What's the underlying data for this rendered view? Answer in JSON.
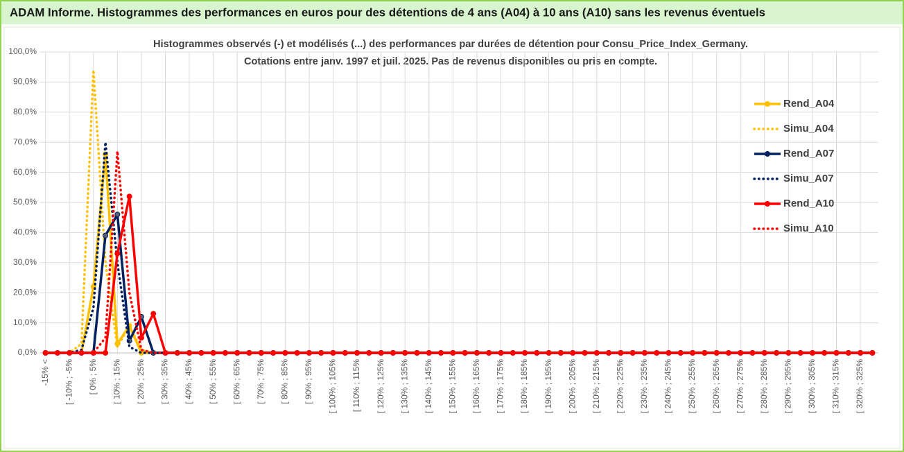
{
  "chart_data": {
    "type": "line",
    "header": "ADAM Informe. Histogrammes des performances en euros pour des détentions de 4 ans (A04) à 10 ans (A10) sans les revenus éventuels",
    "title": [
      "Histogrammes observés (-) et modélisés (...) des performances par durées de détention pour Consu_Price_Index_Germany.",
      "Cotations entre janv. 1997 et juil. 2025. Pas de revenus disponibles ou pris en compte."
    ],
    "categories": [
      "-15% <",
      null,
      "[ -10% ; -5%",
      null,
      "[ 0% ; 5%",
      null,
      "[ 10% ; 15%",
      null,
      "[ 20% ; 25%",
      null,
      "[ 30% ; 35%",
      null,
      "[ 40% ; 45%",
      null,
      "[ 50% ; 55%",
      null,
      "[ 60% ; 65%",
      null,
      "[ 70% ; 75%",
      null,
      "[ 80% ; 85%",
      null,
      "[ 90% ; 95%",
      null,
      "[ 100% ; 105%",
      null,
      "[ 110% ; 115%",
      null,
      "[ 120% ; 125%",
      null,
      "[ 130% ; 135%",
      null,
      "[ 140% ; 145%",
      null,
      "[ 150% ; 155%",
      null,
      "[ 160% ; 165%",
      null,
      "[ 170% ; 175%",
      null,
      "[ 180% ; 185%",
      null,
      "[ 190% ; 195%",
      null,
      "[ 200% ; 205%",
      null,
      "[ 210% ; 215%",
      null,
      "[ 220% ; 225%",
      null,
      "[ 230% ; 235%",
      null,
      "[ 240% ; 245%",
      null,
      "[ 250% ; 255%",
      null,
      "[ 260% ; 265%",
      null,
      "[ 270% ; 275%",
      null,
      "[ 280% ; 285%",
      null,
      "[ 290% ; 295%",
      null,
      "[ 300% ; 305%",
      null,
      "[ 310% ; 315%",
      null,
      "[ 320% ; 325%",
      null
    ],
    "series": [
      {
        "name": "Rend_A04",
        "color": "#ffc000",
        "dash": "solid",
        "markers": true,
        "values": [
          0,
          0,
          0,
          0,
          22,
          66,
          3,
          9,
          0,
          0,
          0,
          0,
          0,
          0,
          0,
          0,
          0,
          0,
          0,
          0,
          0,
          0,
          0,
          0,
          0,
          0,
          0,
          0,
          0,
          0,
          0,
          0,
          0,
          0,
          0,
          0,
          0,
          0,
          0,
          0,
          0,
          0,
          0,
          0,
          0,
          0,
          0,
          0,
          0,
          0,
          0,
          0,
          0,
          0,
          0,
          0,
          0,
          0,
          0,
          0,
          0,
          0,
          0,
          0,
          0,
          0,
          0,
          0,
          0,
          0
        ]
      },
      {
        "name": "Simu_A04",
        "color": "#ffc000",
        "dash": "dotted",
        "markers": false,
        "values": [
          0,
          0,
          0,
          3,
          94,
          30,
          2,
          9,
          1,
          0,
          0,
          0,
          0,
          0,
          0,
          0,
          0,
          0,
          0,
          0,
          0,
          0,
          0,
          0,
          0,
          0,
          0,
          0,
          0,
          0,
          0,
          0,
          0,
          0,
          0,
          0,
          0,
          0,
          0,
          0,
          0,
          0,
          0,
          0,
          0,
          0,
          0,
          0,
          0,
          0,
          0,
          0,
          0,
          0,
          0,
          0,
          0,
          0,
          0,
          0,
          0,
          0,
          0,
          0,
          0,
          0,
          0,
          0,
          0,
          0
        ]
      },
      {
        "name": "Rend_A07",
        "color": "#002060",
        "dash": "solid",
        "markers": true,
        "values": [
          0,
          0,
          0,
          0,
          0,
          39,
          46,
          4,
          12,
          0,
          0,
          0,
          0,
          0,
          0,
          0,
          0,
          0,
          0,
          0,
          0,
          0,
          0,
          0,
          0,
          0,
          0,
          0,
          0,
          0,
          0,
          0,
          0,
          0,
          0,
          0,
          0,
          0,
          0,
          0,
          0,
          0,
          0,
          0,
          0,
          0,
          0,
          0,
          0,
          0,
          0,
          0,
          0,
          0,
          0,
          0,
          0,
          0,
          0,
          0,
          0,
          0,
          0,
          0,
          0,
          0,
          0,
          0,
          0,
          0
        ]
      },
      {
        "name": "Simu_A07",
        "color": "#002060",
        "dash": "dotted",
        "markers": false,
        "values": [
          0,
          0,
          0,
          1,
          15,
          70,
          30,
          2,
          0,
          0,
          0,
          0,
          0,
          0,
          0,
          0,
          0,
          0,
          0,
          0,
          0,
          0,
          0,
          0,
          0,
          0,
          0,
          0,
          0,
          0,
          0,
          0,
          0,
          0,
          0,
          0,
          0,
          0,
          0,
          0,
          0,
          0,
          0,
          0,
          0,
          0,
          0,
          0,
          0,
          0,
          0,
          0,
          0,
          0,
          0,
          0,
          0,
          0,
          0,
          0,
          0,
          0,
          0,
          0,
          0,
          0,
          0,
          0,
          0,
          0
        ]
      },
      {
        "name": "Rend_A10",
        "color": "#ff0000",
        "dash": "solid",
        "markers": true,
        "values": [
          0,
          0,
          0,
          0,
          0,
          0,
          33,
          52,
          5,
          13,
          0,
          0,
          0,
          0,
          0,
          0,
          0,
          0,
          0,
          0,
          0,
          0,
          0,
          0,
          0,
          0,
          0,
          0,
          0,
          0,
          0,
          0,
          0,
          0,
          0,
          0,
          0,
          0,
          0,
          0,
          0,
          0,
          0,
          0,
          0,
          0,
          0,
          0,
          0,
          0,
          0,
          0,
          0,
          0,
          0,
          0,
          0,
          0,
          0,
          0,
          0,
          0,
          0,
          0,
          0,
          0,
          0,
          0,
          0,
          0
        ]
      },
      {
        "name": "Simu_A10",
        "color": "#ff0000",
        "dash": "dotted",
        "markers": false,
        "values": [
          0,
          0,
          0,
          0,
          0,
          5,
          67,
          20,
          1,
          0,
          0,
          0,
          0,
          0,
          0,
          0,
          0,
          0,
          0,
          0,
          0,
          0,
          0,
          0,
          0,
          0,
          0,
          0,
          0,
          0,
          0,
          0,
          0,
          0,
          0,
          0,
          0,
          0,
          0,
          0,
          0,
          0,
          0,
          0,
          0,
          0,
          0,
          0,
          0,
          0,
          0,
          0,
          0,
          0,
          0,
          0,
          0,
          0,
          0,
          0,
          0,
          0,
          0,
          0,
          0,
          0,
          0,
          0,
          0,
          0
        ]
      }
    ],
    "ylim": [
      0,
      100
    ],
    "yticks": [
      {
        "value": 0,
        "label": "0,0%"
      },
      {
        "value": 10,
        "label": "10,0%"
      },
      {
        "value": 20,
        "label": "20,0%"
      },
      {
        "value": 30,
        "label": "30,0%"
      },
      {
        "value": 40,
        "label": "40,0%"
      },
      {
        "value": 50,
        "label": "50,0%"
      },
      {
        "value": 60,
        "label": "60,0%"
      },
      {
        "value": 70,
        "label": "70,0%"
      },
      {
        "value": 80,
        "label": "80,0%"
      },
      {
        "value": 90,
        "label": "90,0%"
      },
      {
        "value": 100,
        "label": "100,0%"
      }
    ],
    "grid": true,
    "legend": "right"
  }
}
